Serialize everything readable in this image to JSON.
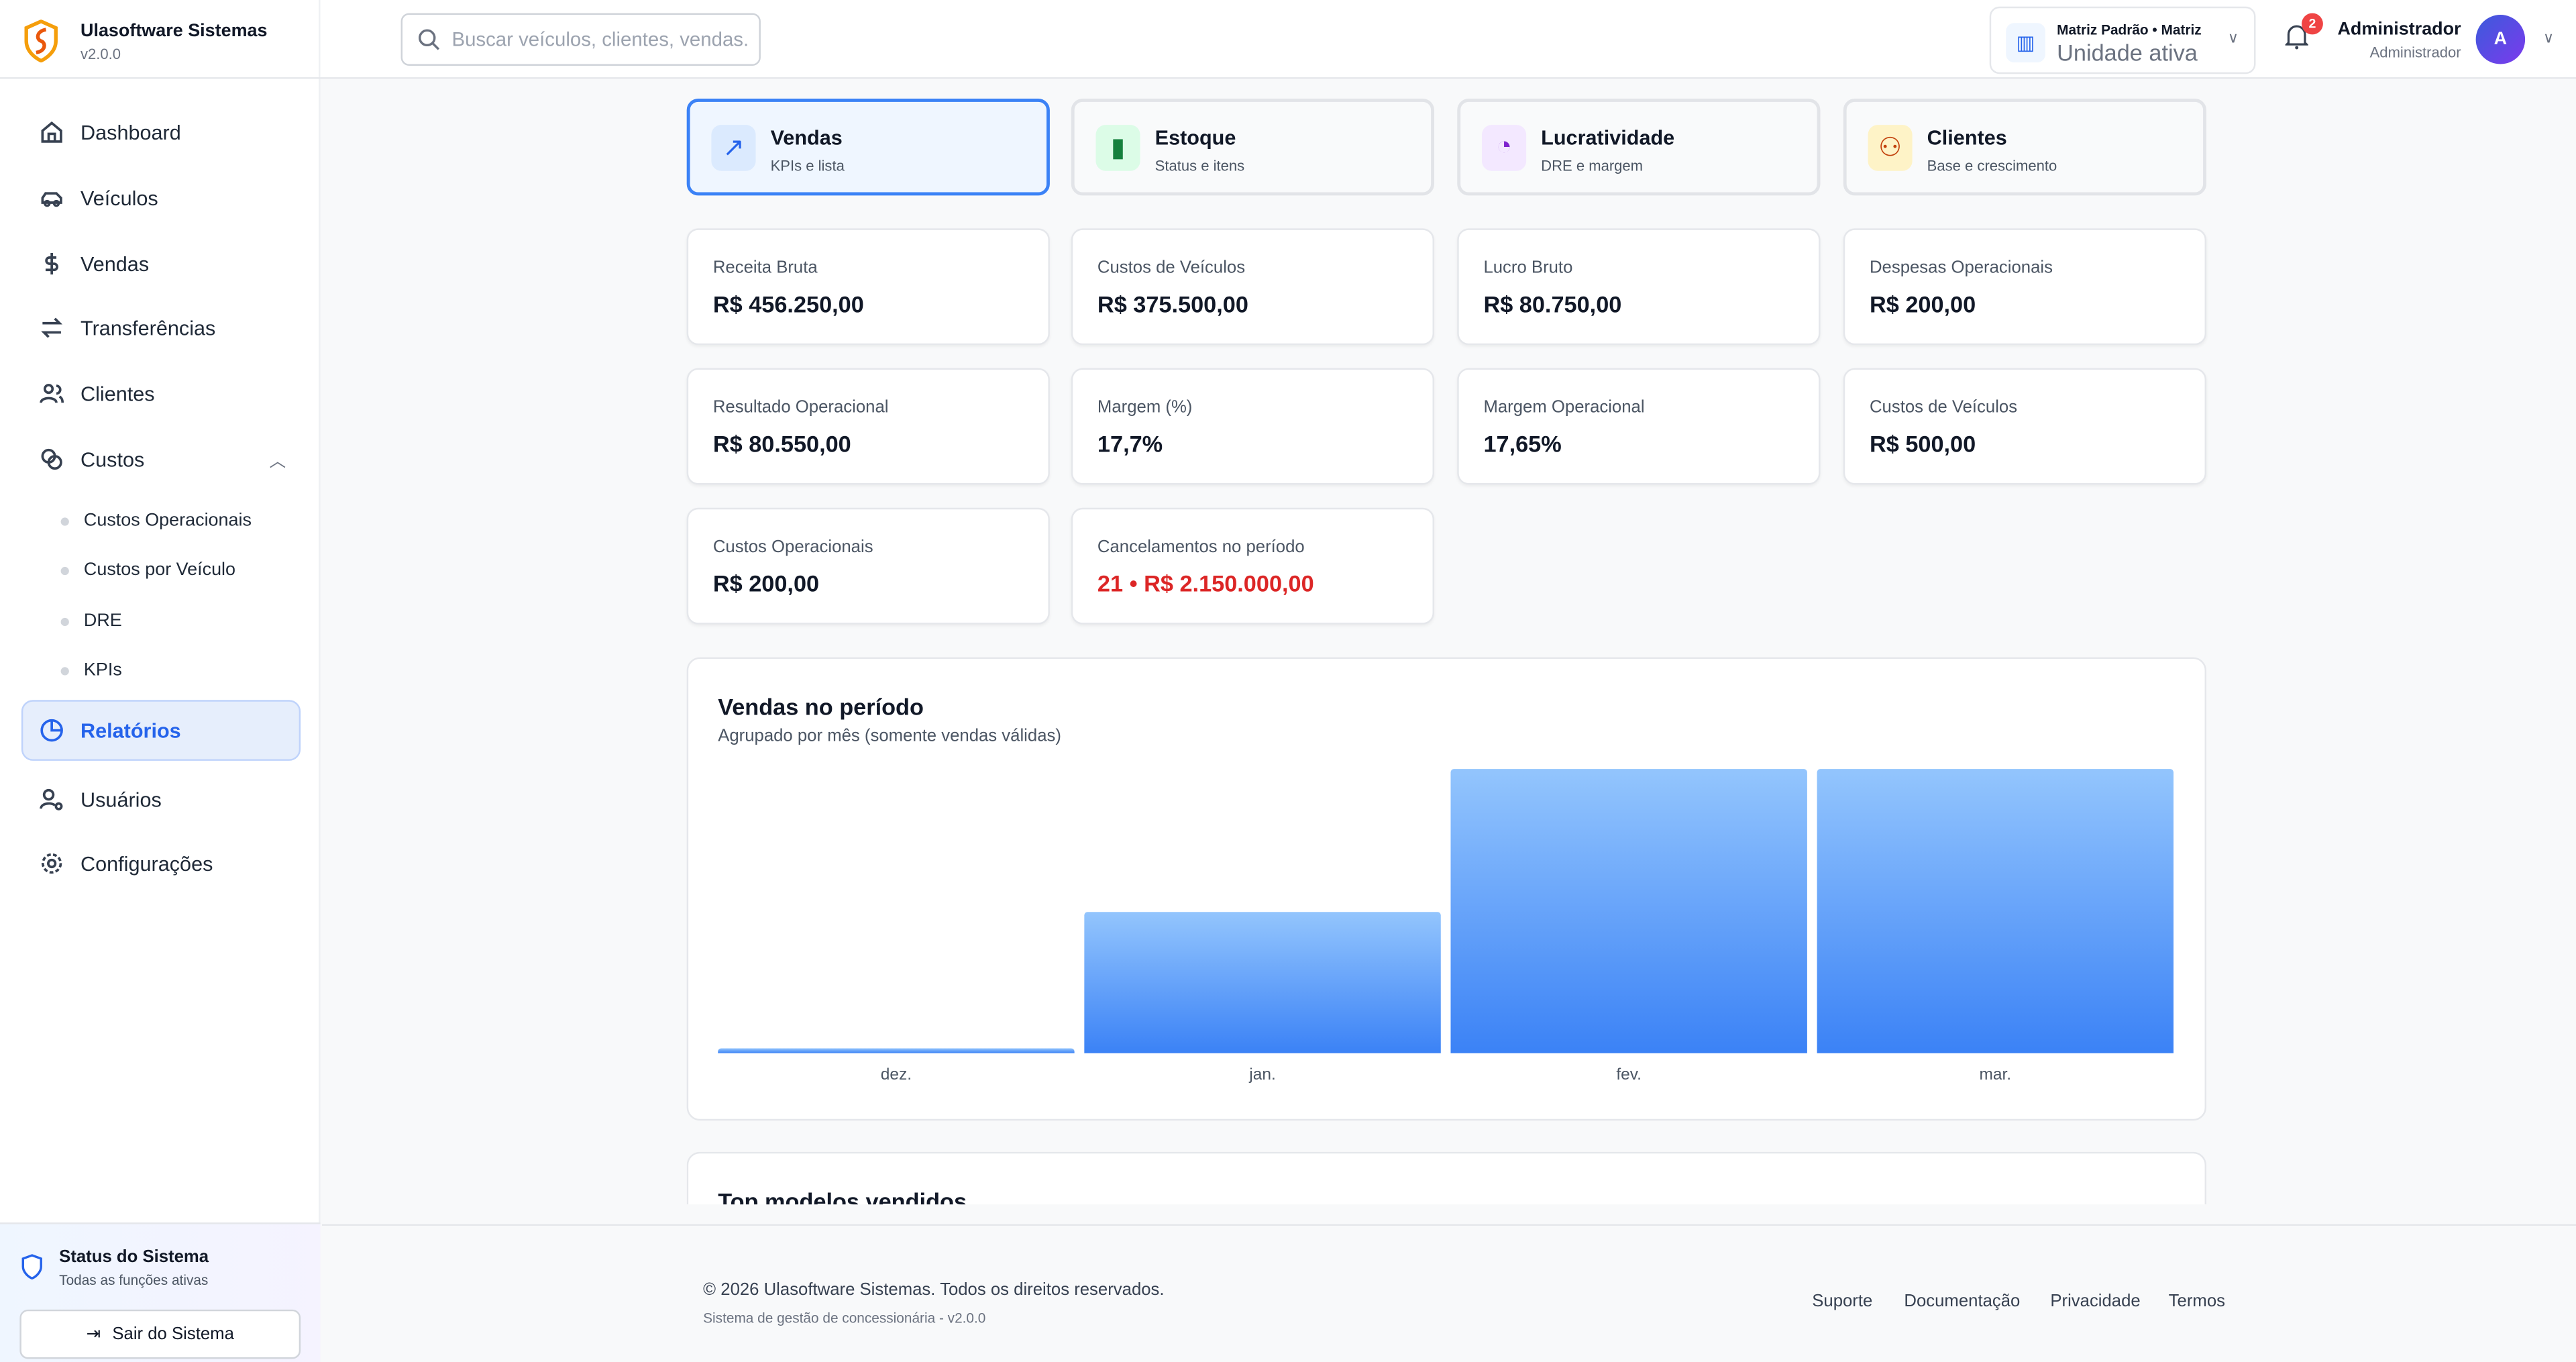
{
  "brand": {
    "name": "Ulasoftware Sistemas",
    "version": "v2.0.0"
  },
  "search": {
    "placeholder": "Buscar veículos, clientes, vendas."
  },
  "unit": {
    "title": "Matriz Padrão • Matriz",
    "subtitle": "Unidade ativa"
  },
  "notifications": {
    "count": "2"
  },
  "user": {
    "name": "Administrador",
    "role": "Administrador",
    "initial": "A"
  },
  "sidebar": {
    "items": [
      {
        "label": "Dashboard",
        "icon": "home-icon"
      },
      {
        "label": "Veículos",
        "icon": "car-icon"
      },
      {
        "label": "Vendas",
        "icon": "dollar-icon"
      },
      {
        "label": "Transferências",
        "icon": "arrows-icon"
      },
      {
        "label": "Clientes",
        "icon": "users-icon"
      },
      {
        "label": "Custos",
        "icon": "coins-icon"
      },
      {
        "label": "Relatórios",
        "icon": "pie-chart-icon"
      },
      {
        "label": "Usuários",
        "icon": "user-cog-icon"
      },
      {
        "label": "Configurações",
        "icon": "gear-icon"
      }
    ],
    "custos_sub": [
      "Custos Operacionais",
      "Custos por Veículo",
      "DRE",
      "KPIs"
    ],
    "status_title": "Status do Sistema",
    "status_sub": "Todas as funções ativas",
    "logout": "Sair do Sistema"
  },
  "tabs": [
    {
      "title": "Vendas",
      "sub": "KPIs e lista",
      "color": "#2563eb",
      "bg": "#dbeafe"
    },
    {
      "title": "Estoque",
      "sub": "Status e itens",
      "color": "#15803d",
      "bg": "#dcfce7"
    },
    {
      "title": "Lucratividade",
      "sub": "DRE e margem",
      "color": "#7e22ce",
      "bg": "#f3e8ff"
    },
    {
      "title": "Clientes",
      "sub": "Base e crescimento",
      "color": "#c2410c",
      "bg": "#fef3c7"
    }
  ],
  "kpis": [
    {
      "label": "Receita Bruta",
      "value": "R$ 456.250,00"
    },
    {
      "label": "Custos de Veículos",
      "value": "R$ 375.500,00"
    },
    {
      "label": "Lucro Bruto",
      "value": "R$ 80.750,00"
    },
    {
      "label": "Despesas Operacionais",
      "value": "R$ 200,00"
    },
    {
      "label": "Resultado Operacional",
      "value": "R$ 80.550,00"
    },
    {
      "label": "Margem (%)",
      "value": "17,7%"
    },
    {
      "label": "Margem Operacional",
      "value": "17,65%"
    },
    {
      "label": "Custos de Veículos",
      "value": "R$ 500,00"
    },
    {
      "label": "Custos Operacionais",
      "value": "R$ 200,00"
    },
    {
      "label": "Cancelamentos no período",
      "value": "21 • R$ 2.150.000,00",
      "color": "#dc2626"
    }
  ],
  "chart_data": {
    "type": "bar",
    "title": "Vendas no período",
    "subtitle": "Agrupado por mês (somente vendas válidas)",
    "categories": [
      "dez.",
      "jan.",
      "fev.",
      "mar."
    ],
    "values": [
      0,
      1,
      2,
      2
    ],
    "grid": false
  },
  "next_card": {
    "title": "Top modelos vendidos"
  },
  "footer": {
    "copyright": "© 2026 Ulasoftware Sistemas. Todos os direitos reservados.",
    "sub": "Sistema de gestão de concessionária - v2.0.0",
    "links": [
      "Suporte",
      "Documentação",
      "Privacidade",
      "Termos"
    ]
  }
}
